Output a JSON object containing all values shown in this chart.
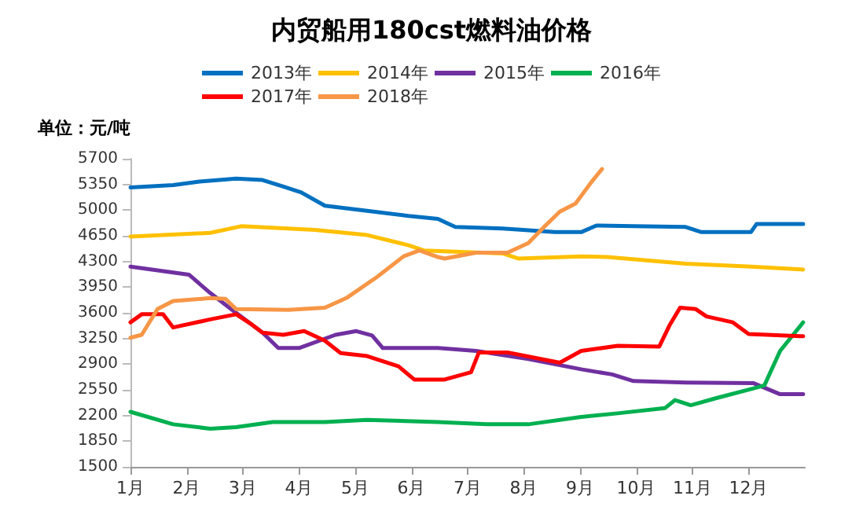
{
  "chart_data": {
    "type": "line",
    "title": "内贸船用180cst燃料油价格",
    "ylabel": "单位：元/吨",
    "xlim": [
      1,
      13
    ],
    "xticks": [
      {
        "value": 1,
        "label": "1月"
      },
      {
        "value": 2,
        "label": "2月"
      },
      {
        "value": 3,
        "label": "3月"
      },
      {
        "value": 4,
        "label": "4月"
      },
      {
        "value": 5,
        "label": "5月"
      },
      {
        "value": 6,
        "label": "6月"
      },
      {
        "value": 7,
        "label": "7月"
      },
      {
        "value": 8,
        "label": "8月"
      },
      {
        "value": 9,
        "label": "9月"
      },
      {
        "value": 10,
        "label": "10月"
      },
      {
        "value": 11,
        "label": "11月"
      },
      {
        "value": 12,
        "label": "12月"
      }
    ],
    "ylim": [
      1500,
      5700
    ],
    "yticks": [
      1500,
      1850,
      2200,
      2550,
      2900,
      3250,
      3600,
      3950,
      4300,
      4650,
      5000,
      5350,
      5700
    ],
    "grid": false,
    "legend": "top",
    "marker": "none",
    "line_style": "solid",
    "series": [
      {
        "name": "2013年",
        "color": "#0070c0",
        "x": [
          1,
          1.76,
          2.23,
          2.88,
          3.35,
          3.72,
          4.04,
          4.46,
          5.21,
          5.95,
          6.47,
          6.78,
          7.62,
          8.55,
          9.02,
          9.29,
          9.95,
          10.88,
          11.16,
          12.04,
          12.14,
          12.97
        ],
        "values": [
          5310,
          5340,
          5390,
          5430,
          5410,
          5320,
          5240,
          5060,
          4990,
          4920,
          4880,
          4770,
          4750,
          4700,
          4700,
          4790,
          4780,
          4770,
          4700,
          4700,
          4810,
          4810
        ]
      },
      {
        "name": "2014年",
        "color": "#ffc000",
        "x": [
          1,
          2.42,
          2.97,
          4.28,
          5.21,
          5.95,
          6.22,
          7.62,
          7.9,
          9.02,
          9.48,
          10.88,
          12.04,
          12.97
        ],
        "values": [
          4640,
          4690,
          4780,
          4730,
          4660,
          4520,
          4450,
          4410,
          4340,
          4370,
          4360,
          4270,
          4230,
          4190
        ]
      },
      {
        "name": "2015年",
        "color": "#7030a0",
        "x": [
          1,
          2.04,
          2.42,
          2.79,
          3.35,
          3.63,
          4.0,
          4.65,
          5.02,
          5.3,
          5.49,
          6.14,
          6.47,
          7.15,
          8.08,
          9.02,
          9.57,
          9.95,
          10.88,
          12.09,
          12.56,
          12.97
        ],
        "values": [
          4230,
          4120,
          3870,
          3650,
          3330,
          3120,
          3120,
          3300,
          3350,
          3290,
          3120,
          3120,
          3120,
          3080,
          2970,
          2830,
          2760,
          2670,
          2650,
          2640,
          2490,
          2490
        ]
      },
      {
        "name": "2016年",
        "color": "#00b050",
        "x": [
          1,
          1.76,
          2.42,
          2.88,
          3.53,
          4.46,
          5.21,
          6.47,
          7.34,
          8.08,
          9.02,
          9.67,
          10.51,
          10.69,
          10.97,
          11.44,
          12.09,
          12.28,
          12.56,
          12.97
        ],
        "values": [
          2250,
          2080,
          2020,
          2040,
          2110,
          2110,
          2140,
          2110,
          2080,
          2080,
          2180,
          2230,
          2300,
          2410,
          2340,
          2440,
          2570,
          2610,
          3080,
          3470
        ]
      },
      {
        "name": "2017年",
        "color": "#ff0000",
        "x": [
          1,
          1.2,
          1.58,
          1.76,
          2.42,
          2.88,
          3.16,
          3.35,
          3.72,
          4.09,
          4.46,
          4.74,
          5.21,
          5.77,
          6.05,
          6.59,
          7.06,
          7.2,
          7.71,
          8.64,
          9.02,
          9.67,
          10.41,
          10.6,
          10.78,
          11.06,
          11.25,
          11.72,
          12.0,
          12.97
        ],
        "values": [
          3470,
          3580,
          3580,
          3400,
          3510,
          3580,
          3440,
          3330,
          3300,
          3350,
          3220,
          3050,
          3010,
          2870,
          2690,
          2690,
          2790,
          3060,
          3060,
          2920,
          3080,
          3150,
          3140,
          3440,
          3670,
          3650,
          3550,
          3470,
          3310,
          3280
        ]
      },
      {
        "name": "2018年",
        "color": "#f79646",
        "x": [
          1,
          1.2,
          1.48,
          1.76,
          2.42,
          2.69,
          2.88,
          3.81,
          4.46,
          4.84,
          5.39,
          5.86,
          6.14,
          6.47,
          6.59,
          7.15,
          7.71,
          8.08,
          8.36,
          8.64,
          8.92,
          9.2,
          9.39
        ],
        "values": [
          3260,
          3300,
          3650,
          3760,
          3800,
          3790,
          3650,
          3640,
          3670,
          3800,
          4090,
          4370,
          4450,
          4360,
          4340,
          4420,
          4420,
          4550,
          4770,
          4980,
          5090,
          5380,
          5560
        ]
      }
    ]
  }
}
